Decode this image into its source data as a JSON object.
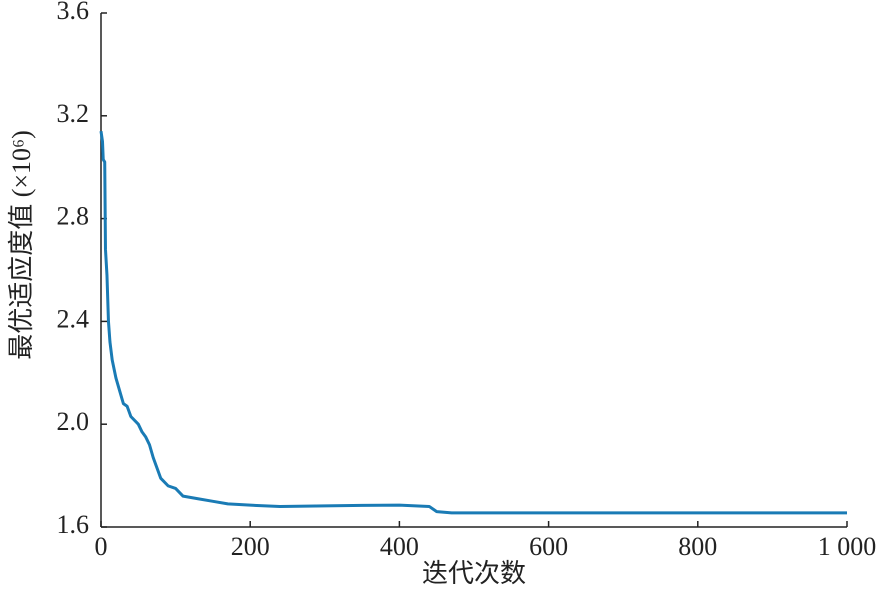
{
  "chart_data": {
    "type": "line",
    "x_label": "迭代次数",
    "y_label": "最优适应度值 (×10⁶)",
    "xlim": [
      0,
      1000
    ],
    "xticks": [
      0,
      200,
      400,
      600,
      800,
      {
        "value": 1000,
        "label": "1 000"
      }
    ],
    "ylim": [
      1.6,
      3.6
    ],
    "yticks": [
      1.6,
      {
        "value": 2,
        "label": "2.0"
      },
      2.4,
      2.8,
      3.2,
      3.6
    ],
    "grid": false,
    "series": [
      {
        "color": "#1a7bb5",
        "x": [
          0,
          2,
          3,
          5,
          6,
          8,
          10,
          12,
          15,
          20,
          25,
          30,
          35,
          40,
          50,
          55,
          60,
          65,
          70,
          75,
          80,
          90,
          100,
          110,
          130,
          150,
          170,
          200,
          240,
          300,
          350,
          400,
          440,
          450,
          470,
          600,
          800,
          1000
        ],
        "values": [
          3.14,
          3.1,
          3.03,
          3.02,
          2.68,
          2.58,
          2.4,
          2.32,
          2.25,
          2.18,
          2.13,
          2.08,
          2.07,
          2.03,
          2.0,
          1.97,
          1.95,
          1.92,
          1.87,
          1.83,
          1.79,
          1.76,
          1.75,
          1.72,
          1.71,
          1.7,
          1.69,
          1.685,
          1.68,
          1.682,
          1.684,
          1.685,
          1.68,
          1.66,
          1.655,
          1.655,
          1.655,
          1.655
        ]
      }
    ]
  }
}
